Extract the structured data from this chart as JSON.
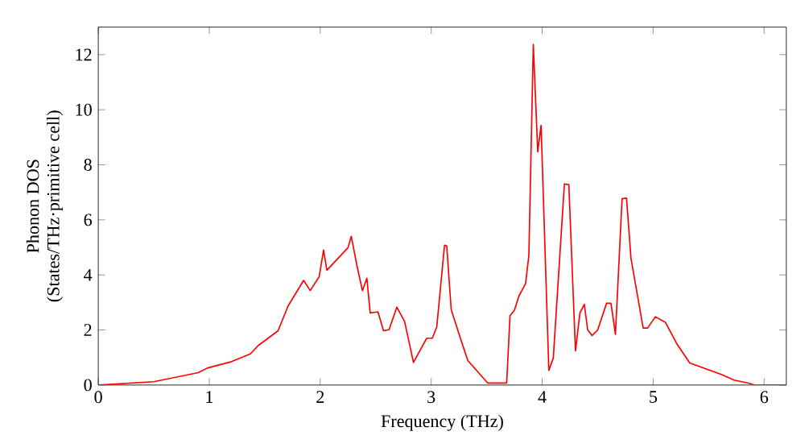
{
  "chart_data": {
    "type": "line",
    "xlabel": "Frequency (THz)",
    "ylabel": "Phonon DOS\n(States/THz·primitive cell)",
    "xlim": [
      0,
      6.2
    ],
    "ylim": [
      0,
      13
    ],
    "xticks": [
      0,
      1,
      2,
      3,
      4,
      5,
      6
    ],
    "yticks": [
      0,
      2,
      4,
      6,
      8,
      10,
      12
    ],
    "grid": false,
    "marker": "none",
    "line_style": "solid",
    "series": [
      {
        "color": "#ff0000",
        "x": [
          0,
          0.5,
          0.9,
          0.985,
          1.2,
          1.37,
          1.44,
          1.62,
          1.71,
          1.85,
          1.91,
          1.99,
          2.03,
          2.06,
          2.25,
          2.28,
          2.33,
          2.38,
          2.42,
          2.45,
          2.52,
          2.57,
          2.62,
          2.69,
          2.76,
          2.84,
          2.89,
          2.96,
          3.01,
          3.05,
          3.12,
          3.14,
          3.18,
          3.27,
          3.33,
          3.51,
          3.68,
          3.71,
          3.75,
          3.79,
          3.85,
          3.88,
          3.92,
          3.96,
          3.99,
          4.06,
          4.1,
          4.2,
          4.24,
          4.3,
          4.34,
          4.38,
          4.41,
          4.45,
          4.5,
          4.58,
          4.62,
          4.66,
          4.72,
          4.76,
          4.8,
          4.91,
          4.95,
          5.02,
          5.11,
          5.21,
          5.33,
          5.61,
          5.73,
          5.86,
          5.91,
          6.19
        ],
        "values": [
          0,
          0.12,
          0.45,
          0.62,
          0.85,
          1.13,
          1.43,
          1.97,
          2.87,
          3.8,
          3.43,
          3.93,
          4.9,
          4.17,
          4.99,
          5.4,
          4.35,
          3.43,
          3.88,
          2.62,
          2.66,
          1.97,
          2.01,
          2.83,
          2.31,
          0.82,
          1.19,
          1.7,
          1.7,
          2.11,
          5.08,
          5.05,
          2.74,
          1.61,
          0.89,
          0.07,
          0.07,
          2.52,
          2.72,
          3.23,
          3.68,
          4.71,
          12.37,
          8.47,
          9.43,
          0.53,
          0.98,
          7.3,
          7.28,
          1.24,
          2.62,
          2.93,
          2.0,
          1.8,
          2.0,
          2.97,
          2.97,
          1.84,
          6.77,
          6.79,
          4.6,
          2.07,
          2.07,
          2.48,
          2.28,
          1.52,
          0.8,
          0.39,
          0.18,
          0.07,
          0,
          0
        ]
      }
    ]
  }
}
